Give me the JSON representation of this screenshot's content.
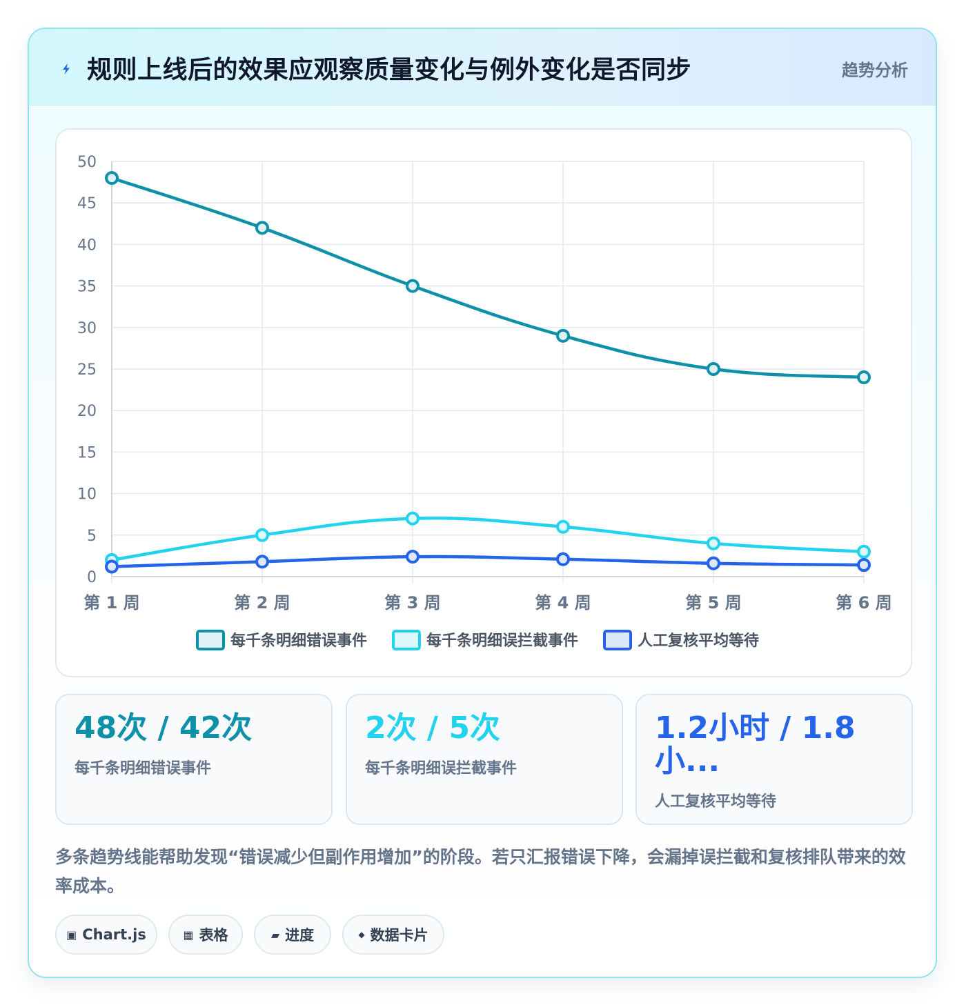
{
  "header": {
    "title": "规则上线后的效果应观察质量变化与例外变化是否同步",
    "badge": "趋势分析",
    "icon": "lightning-icon"
  },
  "chart_data": {
    "type": "line",
    "categories": [
      "第 1 周",
      "第 2 周",
      "第 3 周",
      "第 4 周",
      "第 5 周",
      "第 6 周"
    ],
    "ylim": [
      0,
      50
    ],
    "yticks": [
      0,
      5,
      10,
      15,
      20,
      25,
      30,
      35,
      40,
      45,
      50
    ],
    "grid": true,
    "legend_position": "bottom",
    "series": [
      {
        "name": "每千条明细错误事件",
        "values": [
          48,
          42,
          35,
          29,
          25,
          24
        ],
        "color": "#0e91a8",
        "fill": "#dff2f5"
      },
      {
        "name": "每千条明细误拦截事件",
        "values": [
          2,
          5,
          7,
          6,
          4,
          3
        ],
        "color": "#22d3ee",
        "fill": "#dcf8fc"
      },
      {
        "name": "人工复核平均等待",
        "values": [
          1.2,
          1.8,
          2.4,
          2.1,
          1.6,
          1.4
        ],
        "color": "#2563eb",
        "fill": "#dde8fb"
      }
    ]
  },
  "kpis": [
    {
      "value": "48次 / 42次",
      "label": "每千条明细错误事件",
      "color": "#0e91a8"
    },
    {
      "value": "2次 / 5次",
      "label": "每千条明细误拦截事件",
      "color": "#22d3ee"
    },
    {
      "value": "1.2小时 / 1.8 小...",
      "label": "人工复核平均等待",
      "color": "#2563eb"
    }
  ],
  "note": "多条趋势线能帮助发现“错误减少但副作用增加”的阶段。若只汇报错误下降，会漏掉误拦截和复核排队带来的效率成本。",
  "chips": [
    {
      "icon": "▣",
      "label": "Chart.js"
    },
    {
      "icon": "▦",
      "label": "表格"
    },
    {
      "icon": "▰",
      "label": "进度"
    },
    {
      "icon": "◆",
      "label": "数据卡片"
    }
  ]
}
